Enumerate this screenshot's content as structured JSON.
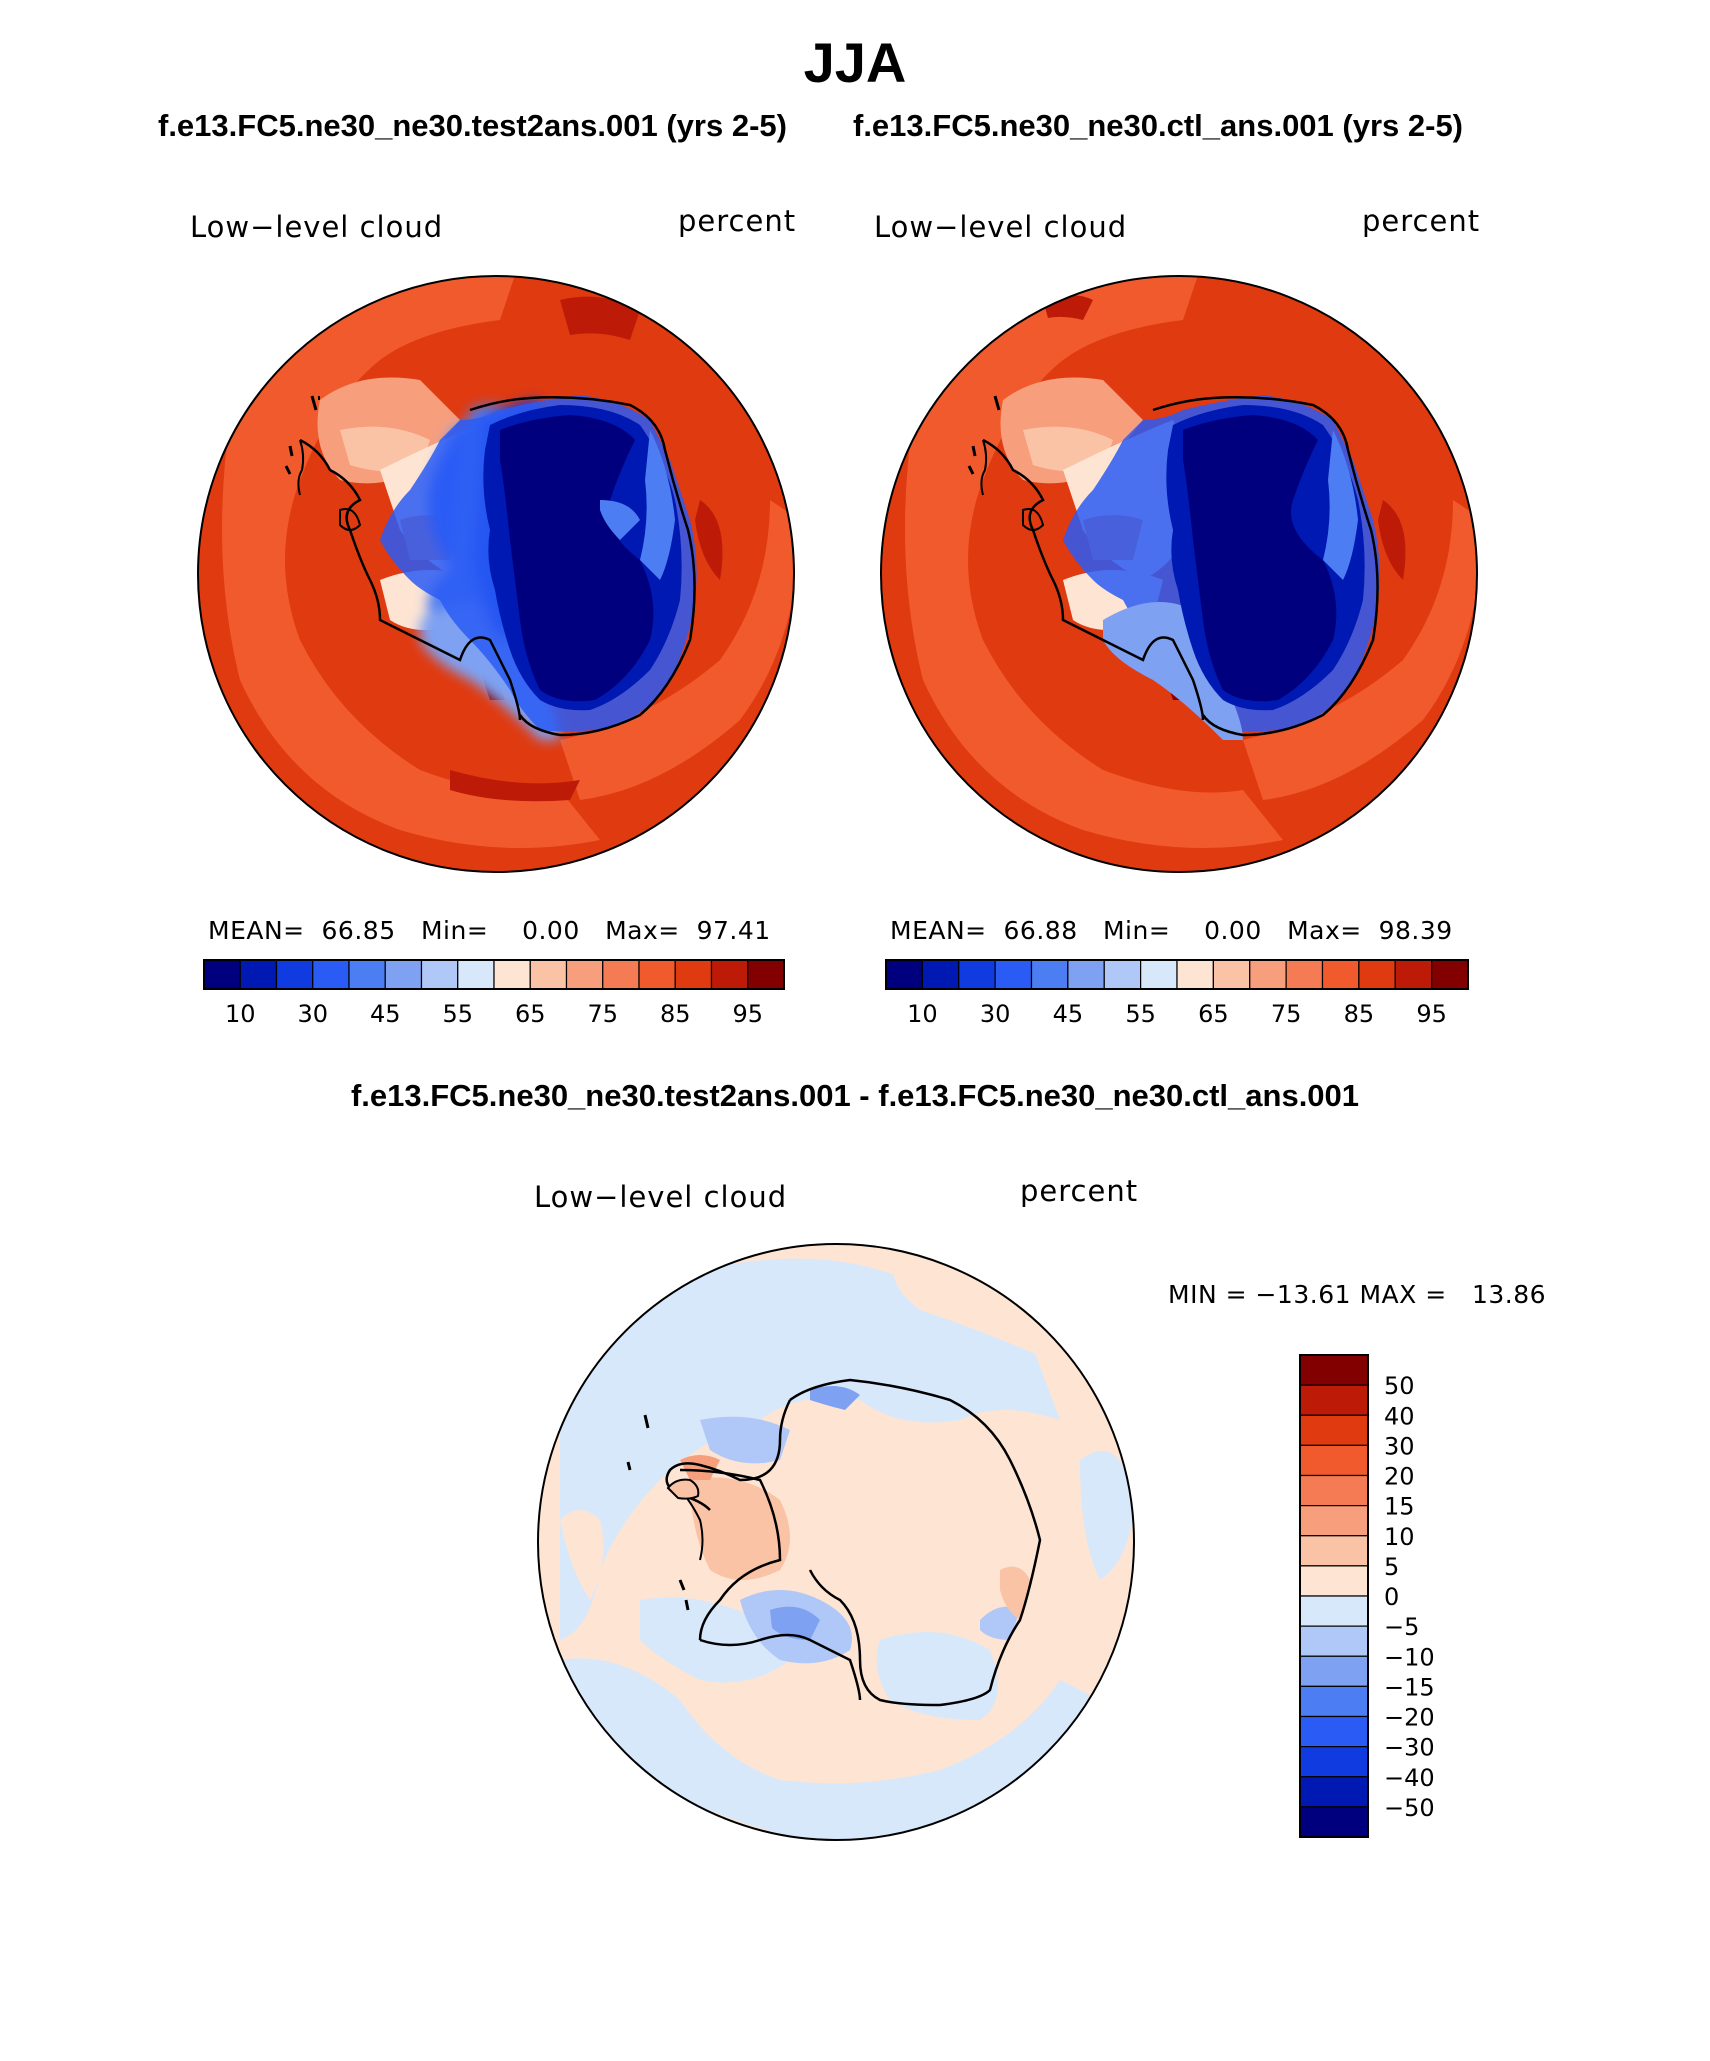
{
  "title": "JJA",
  "panels": [
    {
      "case": "f.e13.FC5.ne30_ne30.test2ans.001 (yrs 2-5)",
      "variable": "Low−level cloud",
      "units": "percent",
      "stats": {
        "mean_label": "MEAN=",
        "mean": "66.85",
        "min_label": "Min=",
        "min": "0.00",
        "max_label": "Max=",
        "max": "97.41"
      }
    },
    {
      "case": "f.e13.FC5.ne30_ne30.ctl_ans.001 (yrs 2-5)",
      "variable": "Low−level cloud",
      "units": "percent",
      "stats": {
        "mean_label": "MEAN=",
        "mean": "66.88",
        "min_label": "Min=",
        "min": "0.00",
        "max_label": "Max=",
        "max": "98.39"
      }
    }
  ],
  "difference": {
    "title": "f.e13.FC5.ne30_ne30.test2ans.001 - f.e13.FC5.ne30_ne30.ctl_ans.001",
    "variable": "Low−level cloud",
    "units": "percent",
    "minmax": "MIN = −13.61 MAX =   13.86"
  },
  "chart_data": [
    {
      "type": "heatmap",
      "projection": "south-polar-stereographic",
      "title": "f.e13.FC5.ne30_ne30.test2ans.001 (yrs 2-5)",
      "field": "Low-level cloud",
      "units": "percent",
      "mean": 66.85,
      "min": 0.0,
      "max": 97.41,
      "colorbar_ticks": [
        "10",
        "30",
        "45",
        "55",
        "65",
        "75",
        "85",
        "95"
      ],
      "colorbar_colors": [
        "#00007f",
        "#0019b2",
        "#0f3be0",
        "#2a5cf5",
        "#4d7df2",
        "#7ea1f2",
        "#b0c8f7",
        "#d8e8fb",
        "#fde4d3",
        "#fbc3a6",
        "#f79e7d",
        "#f47b53",
        "#f05a2c",
        "#e03a10",
        "#bd1b08",
        "#830000"
      ]
    },
    {
      "type": "heatmap",
      "projection": "south-polar-stereographic",
      "title": "f.e13.FC5.ne30_ne30.ctl_ans.001 (yrs 2-5)",
      "field": "Low-level cloud",
      "units": "percent",
      "mean": 66.88,
      "min": 0.0,
      "max": 98.39,
      "colorbar_ticks": [
        "10",
        "30",
        "45",
        "55",
        "65",
        "75",
        "85",
        "95"
      ],
      "colorbar_colors": [
        "#00007f",
        "#0019b2",
        "#0f3be0",
        "#2a5cf5",
        "#4d7df2",
        "#7ea1f2",
        "#b0c8f7",
        "#d8e8fb",
        "#fde4d3",
        "#fbc3a6",
        "#f79e7d",
        "#f47b53",
        "#f05a2c",
        "#e03a10",
        "#bd1b08",
        "#830000"
      ]
    },
    {
      "type": "heatmap",
      "projection": "south-polar-stereographic",
      "title": "f.e13.FC5.ne30_ne30.test2ans.001 - f.e13.FC5.ne30_ne30.ctl_ans.001",
      "field": "Low-level cloud",
      "units": "percent",
      "min": -13.61,
      "max": 13.86,
      "colorbar_ticks": [
        "50",
        "40",
        "30",
        "20",
        "15",
        "10",
        "5",
        "0",
        "−5",
        "−10",
        "−15",
        "−20",
        "−30",
        "−40",
        "−50"
      ],
      "colorbar_colors": [
        "#830000",
        "#bd1b08",
        "#e03a10",
        "#f05a2c",
        "#f47b53",
        "#f79e7d",
        "#fbc3a6",
        "#fde4d3",
        "#d8e8fb",
        "#b0c8f7",
        "#7ea1f2",
        "#4d7df2",
        "#2a5cf5",
        "#0f3be0",
        "#0019b2",
        "#00007f"
      ]
    }
  ]
}
